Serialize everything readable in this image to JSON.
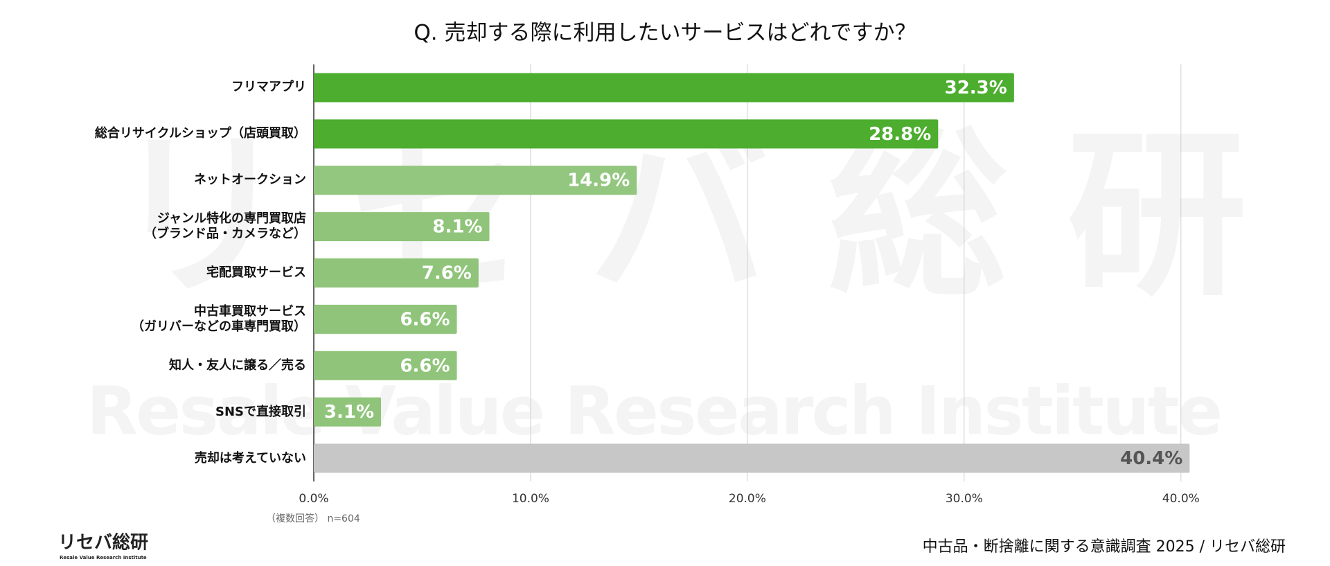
{
  "chart_data": {
    "type": "hbar",
    "title": "Q. 売却する際に利用したいサービスはどれですか？",
    "categories": [
      "フリマアプリ",
      "総合リサイクルショップ（店頭買取）",
      "ネットオークション",
      "ジャンル特化の専門買取店\n（ブランド品・カメラなど）",
      "宅配買取サービス",
      "中古車買取サービス\n（ガリバーなどの車専門買取）",
      "知人・友人に譲る／売る",
      "SNSで直接取引",
      "売却は考えていない"
    ],
    "values": [
      32.3,
      28.8,
      14.9,
      8.1,
      7.6,
      6.6,
      6.6,
      3.1,
      40.4
    ],
    "value_labels": [
      "32.3%",
      "28.8%",
      "14.9%",
      "8.1%",
      "7.6%",
      "6.6%",
      "6.6%",
      "3.1%",
      "40.4%"
    ],
    "colors": [
      "#4cad2e",
      "#4cad2e",
      "#93c67f",
      "#8fc47a",
      "#8fc47a",
      "#8fc47a",
      "#8fc47a",
      "#8fc47a",
      "#c7c7c7"
    ],
    "value_label_colors": [
      "#ffffff",
      "#ffffff",
      "#ffffff",
      "#ffffff",
      "#ffffff",
      "#ffffff",
      "#ffffff",
      "#ffffff",
      "#555555"
    ],
    "xlim": [
      0,
      44
    ],
    "xticks": [
      {
        "value": 0,
        "label": "0.0%"
      },
      {
        "value": 10,
        "label": "10.0%"
      },
      {
        "value": 20,
        "label": "20.0%"
      },
      {
        "value": 30,
        "label": "30.0%"
      },
      {
        "value": 40,
        "label": "40.0%"
      }
    ],
    "grid": true,
    "note": "（複数回答） n=604",
    "source": "中古品・断捨離に関する意識調査 2025 / リセバ総研",
    "watermark": {
      "title": "リセバ総研",
      "subtitle": "Resale Value Research Institute"
    },
    "logo": {
      "title": "リセバ総研",
      "subtitle": "Resale Value Research Institute"
    }
  }
}
